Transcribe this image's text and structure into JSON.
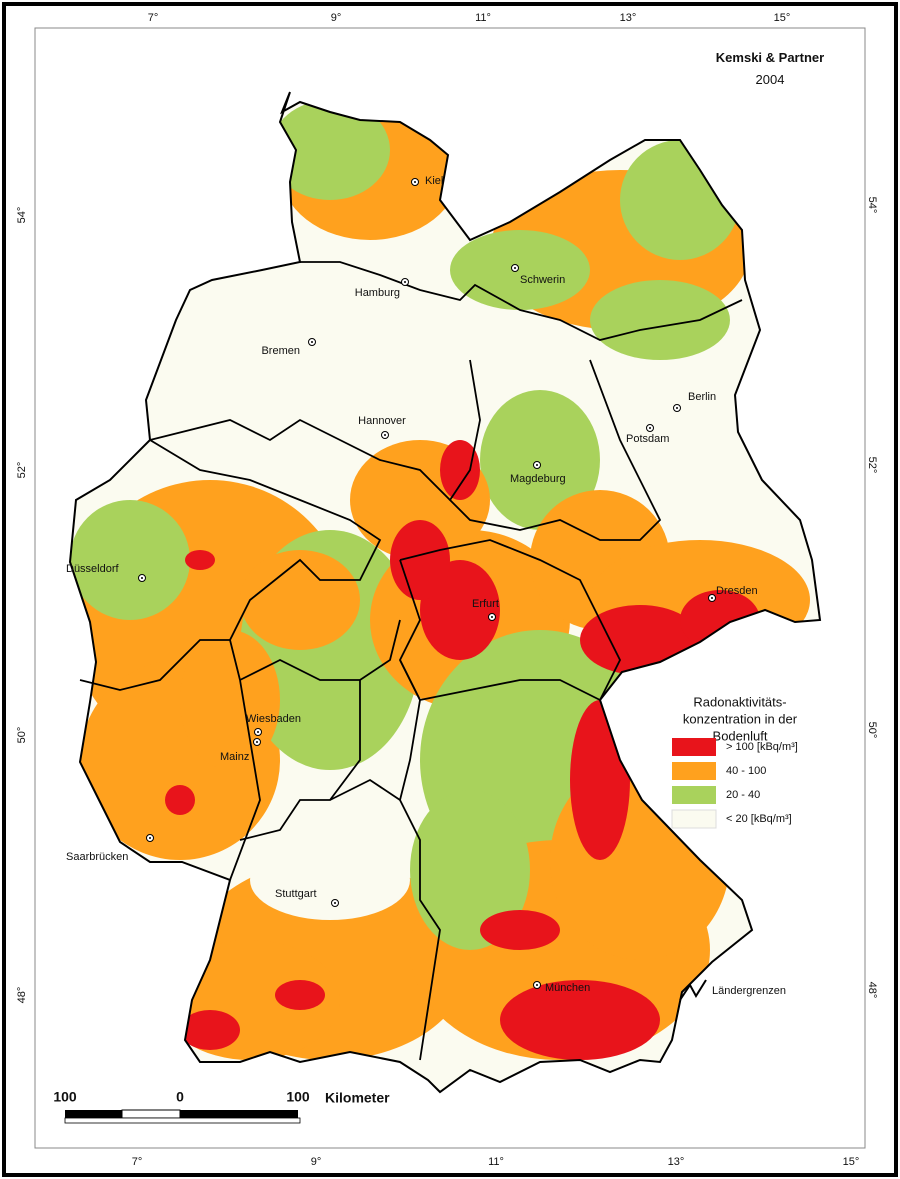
{
  "credit": {
    "author": "Kemski & Partner",
    "year": "2004"
  },
  "graticule": {
    "top": [
      "7°",
      "9°",
      "11°",
      "13°",
      "15°"
    ],
    "bottom": [
      "7°",
      "9°",
      "11°",
      "13°",
      "15°"
    ],
    "left": [
      "54°",
      "52°",
      "50°",
      "48°"
    ],
    "right": [
      "54°",
      "52°",
      "50°",
      "48°"
    ]
  },
  "cities": [
    {
      "label": "Kiel"
    },
    {
      "label": "Hamburg"
    },
    {
      "label": "Schwerin"
    },
    {
      "label": "Bremen"
    },
    {
      "label": "Berlin"
    },
    {
      "label": "Potsdam"
    },
    {
      "label": "Hannover"
    },
    {
      "label": "Magdeburg"
    },
    {
      "label": "Düsseldorf"
    },
    {
      "label": "Erfurt"
    },
    {
      "label": "Dresden"
    },
    {
      "label": "Wiesbaden"
    },
    {
      "label": "Mainz"
    },
    {
      "label": "Saarbrücken"
    },
    {
      "label": "Stuttgart"
    },
    {
      "label": "München"
    }
  ],
  "legend": {
    "title": [
      "Radonaktivitäts-",
      "konzentration in der",
      "Bodenluft"
    ],
    "items": [
      {
        "label": "> 100 [kBq/m³]",
        "color": "#e8141b"
      },
      {
        "label": "40 - 100",
        "color": "#ffa11e"
      },
      {
        "label": "20 - 40",
        "color": "#a9d25c"
      },
      {
        "label": "< 20 [kBq/m³]",
        "color": "#fbfbf0"
      }
    ],
    "borders": "Ländergrenzen"
  },
  "scale_bar": {
    "labels": [
      "100",
      "0",
      "100"
    ],
    "unit": "Kilometer"
  }
}
